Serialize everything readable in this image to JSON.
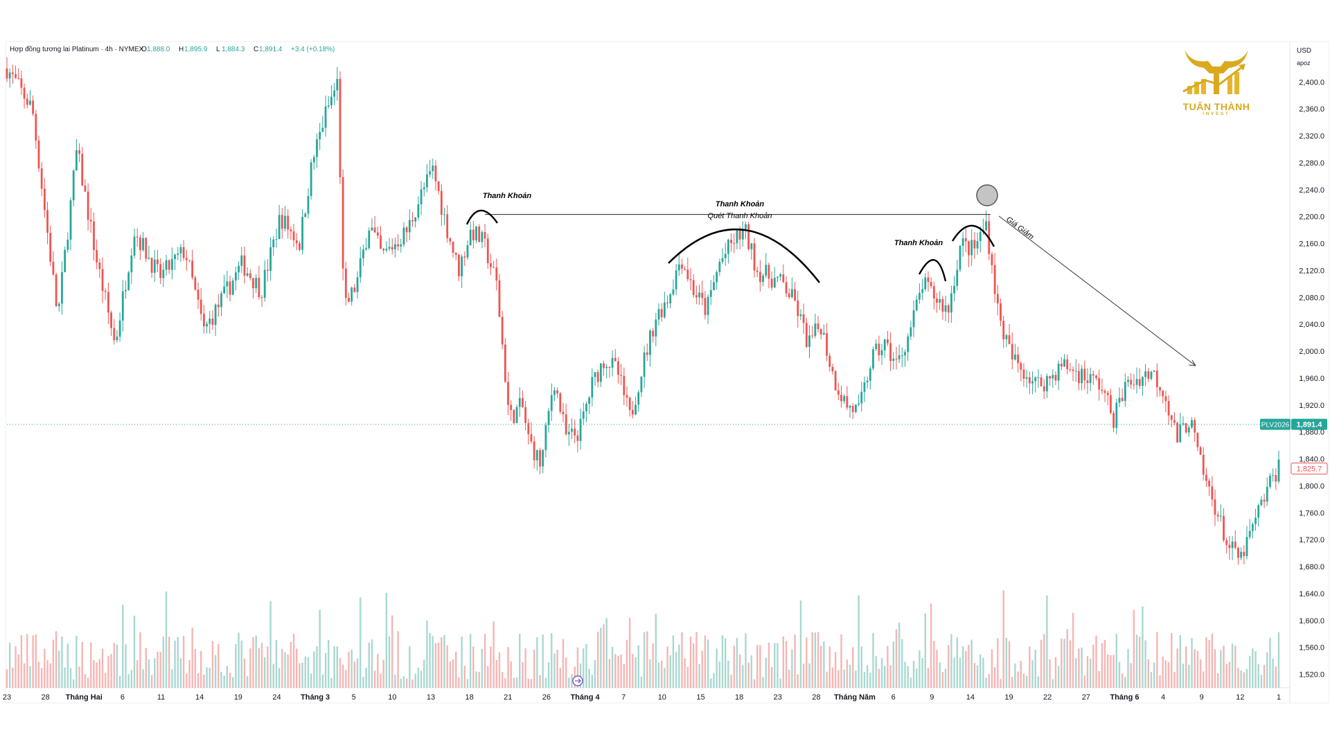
{
  "header": {
    "symbol_line": "Hợp đồng tương lai Platinum · 4h · NYMEX",
    "ohlc": [
      {
        "k": "O",
        "v": "1,888.0"
      },
      {
        "k": "H",
        "v": "1,895.9"
      },
      {
        "k": "L",
        "v": "1,884.3"
      },
      {
        "k": "C",
        "v": "1,891.4"
      }
    ],
    "change": "+3.4 (+0.18%)"
  },
  "axis": {
    "currency": "USD",
    "mode": "apoz",
    "ticks": [
      "2,400.0",
      "2,360.0",
      "2,320.0",
      "2,280.0",
      "2,240.0",
      "2,200.0",
      "2,160.0",
      "2,120.0",
      "2,080.0",
      "2,040.0",
      "2,000.0",
      "1,960.0",
      "1,920.0",
      "1,880.0",
      "1,840.0",
      "1,800.0",
      "1,760.0",
      "1,720.0",
      "1,680.0",
      "1,640.0",
      "1,600.0",
      "1,560.0",
      "1,520.0"
    ]
  },
  "price_tag": {
    "symbol": "PLV2026",
    "price": "1,891.4",
    "value": 1891.4
  },
  "secondary_tag": {
    "price": "1,825.7",
    "value": 1825.7
  },
  "logo": {
    "name": "TUẤN THÀNH",
    "sub": "INVEST",
    "color": "#d9a91e"
  },
  "colors": {
    "up": "#26a69a",
    "down": "#ef5350",
    "volume_up": "#a8d8d0",
    "volume_down": "#f5b5b3",
    "annotation": "#000000"
  },
  "chart_data": {
    "type": "candlestick",
    "interval": "4h",
    "ylim": [
      1500,
      2460
    ],
    "x_ticks": [
      "23",
      "28",
      "Tháng Hai",
      "6",
      "11",
      "14",
      "19",
      "24",
      "Tháng 3",
      "5",
      "10",
      "13",
      "18",
      "21",
      "26",
      "Tháng 4",
      "7",
      "10",
      "15",
      "18",
      "23",
      "28",
      "Tháng Năm",
      "6",
      "9",
      "14",
      "19",
      "22",
      "27",
      "Tháng 6",
      "4",
      "9",
      "12",
      "1"
    ],
    "path": [
      [
        0.0,
        2420
      ],
      [
        0.02,
        2360
      ],
      [
        0.04,
        2050
      ],
      [
        0.055,
        2300
      ],
      [
        0.07,
        2140
      ],
      [
        0.085,
        2010
      ],
      [
        0.1,
        2180
      ],
      [
        0.12,
        2110
      ],
      [
        0.14,
        2150
      ],
      [
        0.155,
        2030
      ],
      [
        0.17,
        2080
      ],
      [
        0.185,
        2130
      ],
      [
        0.2,
        2090
      ],
      [
        0.215,
        2200
      ],
      [
        0.23,
        2160
      ],
      [
        0.24,
        2280
      ],
      [
        0.25,
        2350
      ],
      [
        0.26,
        2400
      ],
      [
        0.265,
        2060
      ],
      [
        0.275,
        2100
      ],
      [
        0.285,
        2190
      ],
      [
        0.295,
        2140
      ],
      [
        0.305,
        2160
      ],
      [
        0.315,
        2180
      ],
      [
        0.325,
        2230
      ],
      [
        0.335,
        2270
      ],
      [
        0.345,
        2190
      ],
      [
        0.355,
        2120
      ],
      [
        0.365,
        2180
      ],
      [
        0.375,
        2160
      ],
      [
        0.385,
        2100
      ],
      [
        0.395,
        1900
      ],
      [
        0.405,
        1920
      ],
      [
        0.41,
        1870
      ],
      [
        0.42,
        1830
      ],
      [
        0.43,
        1960
      ],
      [
        0.44,
        1870
      ],
      [
        0.45,
        1880
      ],
      [
        0.46,
        1950
      ],
      [
        0.47,
        1990
      ],
      [
        0.48,
        1970
      ],
      [
        0.49,
        1900
      ],
      [
        0.5,
        1980
      ],
      [
        0.51,
        2050
      ],
      [
        0.52,
        2080
      ],
      [
        0.53,
        2140
      ],
      [
        0.54,
        2090
      ],
      [
        0.55,
        2060
      ],
      [
        0.56,
        2130
      ],
      [
        0.57,
        2160
      ],
      [
        0.58,
        2180
      ],
      [
        0.59,
        2120
      ],
      [
        0.6,
        2110
      ],
      [
        0.61,
        2100
      ],
      [
        0.62,
        2070
      ],
      [
        0.63,
        2010
      ],
      [
        0.64,
        2040
      ],
      [
        0.65,
        1960
      ],
      [
        0.66,
        1920
      ],
      [
        0.67,
        1910
      ],
      [
        0.68,
        1990
      ],
      [
        0.69,
        2010
      ],
      [
        0.7,
        1980
      ],
      [
        0.71,
        2030
      ],
      [
        0.72,
        2100
      ],
      [
        0.73,
        2080
      ],
      [
        0.74,
        2060
      ],
      [
        0.75,
        2160
      ],
      [
        0.76,
        2150
      ],
      [
        0.77,
        2190
      ],
      [
        0.78,
        2050
      ],
      [
        0.79,
        1990
      ],
      [
        0.8,
        1970
      ],
      [
        0.81,
        1950
      ],
      [
        0.82,
        1960
      ],
      [
        0.83,
        1980
      ],
      [
        0.84,
        1970
      ],
      [
        0.85,
        1960
      ],
      [
        0.86,
        1950
      ],
      [
        0.87,
        1900
      ],
      [
        0.88,
        1950
      ],
      [
        0.89,
        1960
      ],
      [
        0.9,
        1970
      ],
      [
        0.91,
        1940
      ],
      [
        0.92,
        1870
      ],
      [
        0.93,
        1900
      ],
      [
        0.94,
        1820
      ],
      [
        0.95,
        1770
      ],
      [
        0.96,
        1710
      ],
      [
        0.97,
        1690
      ],
      [
        0.98,
        1740
      ],
      [
        0.99,
        1790
      ],
      [
        1.0,
        1830
      ]
    ],
    "annotations": {
      "liquidity_labels": [
        "Thanh Khoản",
        "Thanh Khoản",
        "Thanh Khoản"
      ],
      "sweep_label": "Quét Thanh Khoản",
      "drop_label": "Giá Giảm",
      "liquidity_level": 2200
    }
  }
}
